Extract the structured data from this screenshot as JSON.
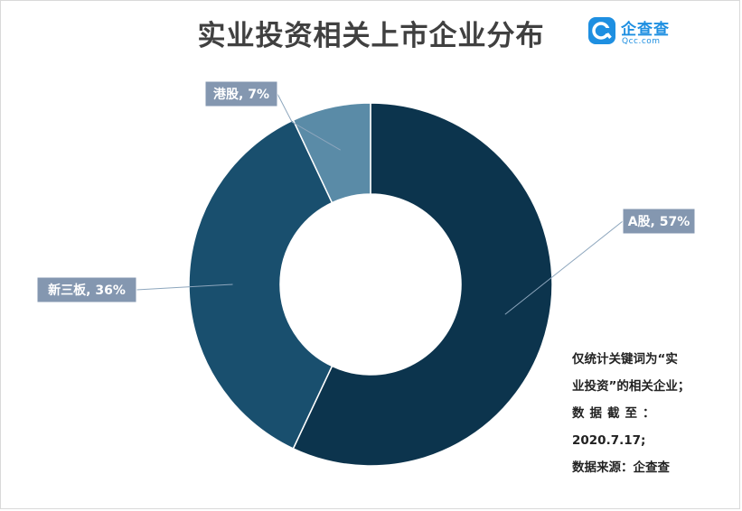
{
  "title": "实业投资相关上市企业分布",
  "logo": {
    "name": "企查查",
    "domain": "Qcc.com"
  },
  "note": {
    "line1": "仅统计关键词为“实",
    "line2": "业投资”的相关企业；",
    "line3": "数据截至：",
    "line4": "2020.7.17;",
    "line5": "数据来源：企查查"
  },
  "colors": {
    "a_share": "#0c344d",
    "new_third_board": "#194f6e",
    "hk_share": "#5a8ba7",
    "label_bg": "#8497b0",
    "leader": "#8da6bd"
  },
  "chart_data": {
    "type": "pie",
    "donut": true,
    "categories": [
      "A股",
      "新三板",
      "港股"
    ],
    "values": [
      57,
      36,
      7
    ],
    "unit": "%",
    "labels": [
      "A股, 57%",
      "新三板, 36%",
      "港股, 7%"
    ],
    "title": "实业投资相关上市企业分布"
  }
}
